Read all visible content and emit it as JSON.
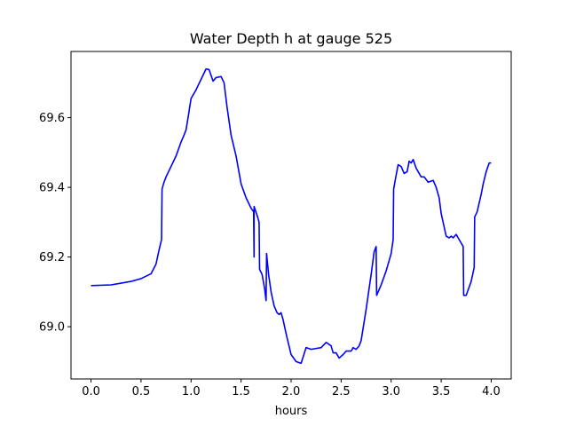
{
  "chart_data": {
    "type": "line",
    "title": "Water Depth h at gauge 525",
    "xlabel": "hours",
    "ylabel": "",
    "xlim": [
      -0.2,
      4.2
    ],
    "ylim": [
      68.85,
      69.79
    ],
    "xticks": [
      0.0,
      0.5,
      1.0,
      1.5,
      2.0,
      2.5,
      3.0,
      3.5,
      4.0
    ],
    "xtick_labels": [
      "0.0",
      "0.5",
      "1.0",
      "1.5",
      "2.0",
      "2.5",
      "3.0",
      "3.5",
      "4.0"
    ],
    "yticks": [
      69.0,
      69.2,
      69.4,
      69.6
    ],
    "ytick_labels": [
      "69.0",
      "69.2",
      "69.4",
      "69.6"
    ],
    "grid": false,
    "series": [
      {
        "color": "#0000ff",
        "points": [
          [
            0.0,
            69.118
          ],
          [
            0.2,
            69.12
          ],
          [
            0.3,
            69.125
          ],
          [
            0.4,
            69.13
          ],
          [
            0.5,
            69.138
          ],
          [
            0.6,
            69.152
          ],
          [
            0.65,
            69.18
          ],
          [
            0.68,
            69.22
          ],
          [
            0.705,
            69.25
          ],
          [
            0.71,
            69.395
          ],
          [
            0.73,
            69.415
          ],
          [
            0.75,
            69.43
          ],
          [
            0.8,
            69.46
          ],
          [
            0.85,
            69.49
          ],
          [
            0.9,
            69.53
          ],
          [
            0.93,
            69.55
          ],
          [
            0.95,
            69.565
          ],
          [
            0.97,
            69.6
          ],
          [
            1.0,
            69.655
          ],
          [
            1.05,
            69.68
          ],
          [
            1.1,
            69.71
          ],
          [
            1.15,
            69.74
          ],
          [
            1.18,
            69.738
          ],
          [
            1.22,
            69.705
          ],
          [
            1.25,
            69.715
          ],
          [
            1.3,
            69.718
          ],
          [
            1.33,
            69.7
          ],
          [
            1.36,
            69.63
          ],
          [
            1.4,
            69.55
          ],
          [
            1.45,
            69.49
          ],
          [
            1.5,
            69.41
          ],
          [
            1.55,
            69.37
          ],
          [
            1.6,
            69.34
          ],
          [
            1.625,
            69.33
          ],
          [
            1.63,
            69.2
          ],
          [
            1.63,
            69.345
          ],
          [
            1.66,
            69.32
          ],
          [
            1.68,
            69.3
          ],
          [
            1.685,
            69.165
          ],
          [
            1.71,
            69.15
          ],
          [
            1.735,
            69.11
          ],
          [
            1.75,
            69.075
          ],
          [
            1.755,
            69.21
          ],
          [
            1.775,
            69.15
          ],
          [
            1.8,
            69.1
          ],
          [
            1.83,
            69.06
          ],
          [
            1.86,
            69.04
          ],
          [
            1.88,
            69.035
          ],
          [
            1.9,
            69.04
          ],
          [
            1.92,
            69.02
          ],
          [
            1.95,
            68.98
          ],
          [
            2.0,
            68.92
          ],
          [
            2.05,
            68.9
          ],
          [
            2.1,
            68.895
          ],
          [
            2.15,
            68.94
          ],
          [
            2.2,
            68.935
          ],
          [
            2.3,
            68.94
          ],
          [
            2.35,
            68.955
          ],
          [
            2.4,
            68.945
          ],
          [
            2.42,
            68.925
          ],
          [
            2.45,
            68.925
          ],
          [
            2.48,
            68.91
          ],
          [
            2.52,
            68.92
          ],
          [
            2.55,
            68.93
          ],
          [
            2.6,
            68.93
          ],
          [
            2.62,
            68.94
          ],
          [
            2.65,
            68.935
          ],
          [
            2.68,
            68.945
          ],
          [
            2.7,
            68.96
          ],
          [
            2.75,
            69.05
          ],
          [
            2.8,
            69.15
          ],
          [
            2.83,
            69.215
          ],
          [
            2.85,
            69.23
          ],
          [
            2.855,
            69.09
          ],
          [
            2.9,
            69.12
          ],
          [
            2.95,
            69.16
          ],
          [
            3.0,
            69.21
          ],
          [
            3.02,
            69.25
          ],
          [
            3.025,
            69.395
          ],
          [
            3.05,
            69.435
          ],
          [
            3.07,
            69.465
          ],
          [
            3.1,
            69.46
          ],
          [
            3.13,
            69.44
          ],
          [
            3.16,
            69.445
          ],
          [
            3.18,
            69.475
          ],
          [
            3.2,
            69.47
          ],
          [
            3.22,
            69.48
          ],
          [
            3.25,
            69.455
          ],
          [
            3.3,
            69.43
          ],
          [
            3.33,
            69.43
          ],
          [
            3.37,
            69.415
          ],
          [
            3.42,
            69.42
          ],
          [
            3.45,
            69.4
          ],
          [
            3.48,
            69.37
          ],
          [
            3.5,
            69.325
          ],
          [
            3.55,
            69.26
          ],
          [
            3.58,
            69.255
          ],
          [
            3.6,
            69.26
          ],
          [
            3.62,
            69.255
          ],
          [
            3.65,
            69.265
          ],
          [
            3.7,
            69.24
          ],
          [
            3.72,
            69.23
          ],
          [
            3.725,
            69.09
          ],
          [
            3.75,
            69.09
          ],
          [
            3.8,
            69.13
          ],
          [
            3.83,
            69.17
          ],
          [
            3.835,
            69.315
          ],
          [
            3.86,
            69.33
          ],
          [
            3.9,
            69.38
          ],
          [
            3.92,
            69.41
          ],
          [
            3.95,
            69.445
          ],
          [
            3.98,
            69.47
          ],
          [
            4.0,
            69.47
          ]
        ]
      }
    ]
  }
}
